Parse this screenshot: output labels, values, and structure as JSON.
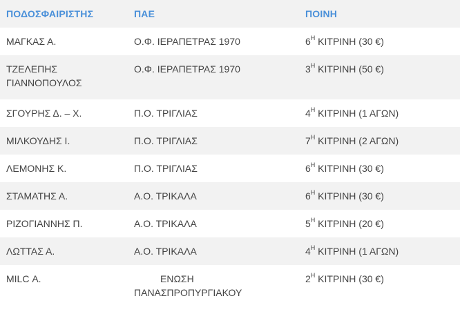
{
  "headers": {
    "player": "ΠΟΔΟΣΦΑΙΡΙΣΤΗΣ",
    "team": "ΠΑΕ",
    "penalty": "ΠΟΙΝΗ"
  },
  "rows": [
    {
      "player": "ΜΑΓΚΑΣ  Α.",
      "team": "Ο.Φ. ΙΕΡΑΠΕΤΡΑΣ 1970",
      "num": "6",
      "sup": "Η",
      "penalty": " ΚΙΤΡΙΝΗ (30 €)"
    },
    {
      "player": "ΤΖΕΛΕΠΗΣ ΓΙΑΝΝΟΠΟΥΛΟΣ",
      "team": "Ο.Φ. ΙΕΡΑΠΕΤΡΑΣ 1970",
      "num": "3",
      "sup": "Η",
      "penalty": " ΚΙΤΡΙΝΗ (50 €)"
    },
    {
      "player": "ΣΓΟΥΡΗΣ  Δ. – Χ.",
      "team": "Π.Ο. ΤΡΙΓΛΙΑΣ",
      "num": "4",
      "sup": "Η",
      "penalty": " ΚΙΤΡΙΝΗ (1 ΑΓΩΝ)"
    },
    {
      "player": "ΜΙΛΚΟΥΔΗΣ  Ι.",
      "team": "Π.Ο. ΤΡΙΓΛΙΑΣ",
      "num": "7",
      "sup": "Η",
      "penalty": " ΚΙΤΡΙΝΗ (2 ΑΓΩΝ)"
    },
    {
      "player": "ΛΕΜΟΝΗΣ  Κ.",
      "team": "Π.Ο. ΤΡΙΓΛΙΑΣ",
      "num": "6",
      "sup": "Η",
      "penalty": " ΚΙΤΡΙΝΗ (30 €)"
    },
    {
      "player": "ΣΤΑΜΑΤΗΣ  Α.",
      "team": "Α.Ο. ΤΡΙΚΑΛΑ",
      "num": "6",
      "sup": "Η",
      "penalty": " ΚΙΤΡΙΝΗ (30 €)"
    },
    {
      "player": "ΡΙΖΟΓΙΑΝΝΗΣ  Π.",
      "team": "Α.Ο. ΤΡΙΚΑΛΑ",
      "num": "5",
      "sup": "Η",
      "penalty": " ΚΙΤΡΙΝΗ (20 €)"
    },
    {
      "player": "ΛΩΤΤΑΣ  Α.",
      "team": "Α.Ο. ΤΡΙΚΑΛΑ",
      "num": "4",
      "sup": "Η",
      "penalty": " ΚΙΤΡΙΝΗ (1 ΑΓΩΝ)"
    },
    {
      "player": "MILC  Α.",
      "team_line1": "ΕΝΩΣΗ",
      "team_line2": "ΠΑΝΑΣΠΡΟΠΥΡΓΙΑΚΟΥ",
      "num": "2",
      "sup": "Η",
      "penalty": " ΚΙΤΡΙΝΗ (30 €)"
    }
  ],
  "colors": {
    "header_text": "#4a90d9",
    "stripe": "#f2f2f2",
    "text": "#444444"
  }
}
